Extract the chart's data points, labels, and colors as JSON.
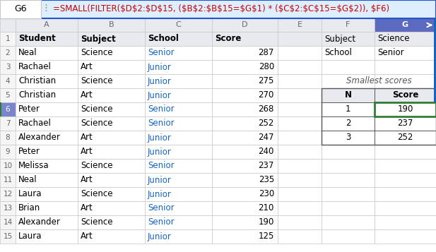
{
  "formula_bar_cell": "G6",
  "formula_bar_text": "=SMALL(FILTER($D$2:$D$15, ($B$2:$B$15=$G$1) * ($C$2:$C$15=$G$2)), $F6)",
  "col_headers": [
    "",
    "A",
    "B",
    "C",
    "D",
    "E",
    "F",
    "G"
  ],
  "main_headers": [
    "Student",
    "Subject",
    "School",
    "Score",
    "",
    "",
    ""
  ],
  "rows": [
    [
      "Neal",
      "Science",
      "Senior",
      "287",
      "",
      "",
      ""
    ],
    [
      "Rachael",
      "Art",
      "Junior",
      "280",
      "",
      "",
      ""
    ],
    [
      "Christian",
      "Science",
      "Junior",
      "275",
      "",
      "",
      ""
    ],
    [
      "Christian",
      "Art",
      "Junior",
      "270",
      "",
      "",
      ""
    ],
    [
      "Peter",
      "Science",
      "Senior",
      "268",
      "",
      "",
      ""
    ],
    [
      "Rachael",
      "Science",
      "Senior",
      "252",
      "",
      "",
      ""
    ],
    [
      "Alexander",
      "Art",
      "Junior",
      "247",
      "",
      "",
      ""
    ],
    [
      "Peter",
      "Art",
      "Junior",
      "240",
      "",
      "",
      ""
    ],
    [
      "Melissa",
      "Science",
      "Senior",
      "237",
      "",
      "",
      ""
    ],
    [
      "Neal",
      "Art",
      "Junior",
      "235",
      "",
      "",
      ""
    ],
    [
      "Laura",
      "Science",
      "Junior",
      "230",
      "",
      "",
      ""
    ],
    [
      "Brian",
      "Art",
      "Senior",
      "210",
      "",
      "",
      ""
    ],
    [
      "Alexander",
      "Science",
      "Senior",
      "190",
      "",
      "",
      ""
    ],
    [
      "Laura",
      "Art",
      "Junior",
      "125",
      "",
      "",
      ""
    ]
  ],
  "right_panel": {
    "row1": [
      "Subject",
      "Science"
    ],
    "row2": [
      "School",
      "Senior"
    ],
    "label": "Smallest scores",
    "headers": [
      "N",
      "Score"
    ],
    "data": [
      [
        "1",
        "190"
      ],
      [
        "2",
        "237"
      ],
      [
        "3",
        "252"
      ]
    ]
  },
  "formula_bg": "#ddeeff",
  "formula_border": "#2255cc",
  "formula_text_color": "#cc0000",
  "grid_color": "#c8c8c8",
  "col_header_bg": "#e8eaf0",
  "col_header_fg": "#666677",
  "row_header_bg": "#f5f5f5",
  "row_header_fg": "#666666",
  "col_g_header_bg": "#5c6bc0",
  "col_g_header_fg": "#ffffff",
  "row6_rownr_bg": "#7986cb",
  "row6_rownr_fg": "#ffffff",
  "selected_cell_border": "#2e7d32",
  "cell_bg": "#ffffff",
  "header_row_bg": "#e8eaf0",
  "header_row_fg": "#000000",
  "junior_color": "#1565c0",
  "senior_color": "#1565c0",
  "school_color": "#000000",
  "right_panel_label_color": "#555555",
  "table_border_color": "#555555",
  "arrow_color": "#1565c0"
}
